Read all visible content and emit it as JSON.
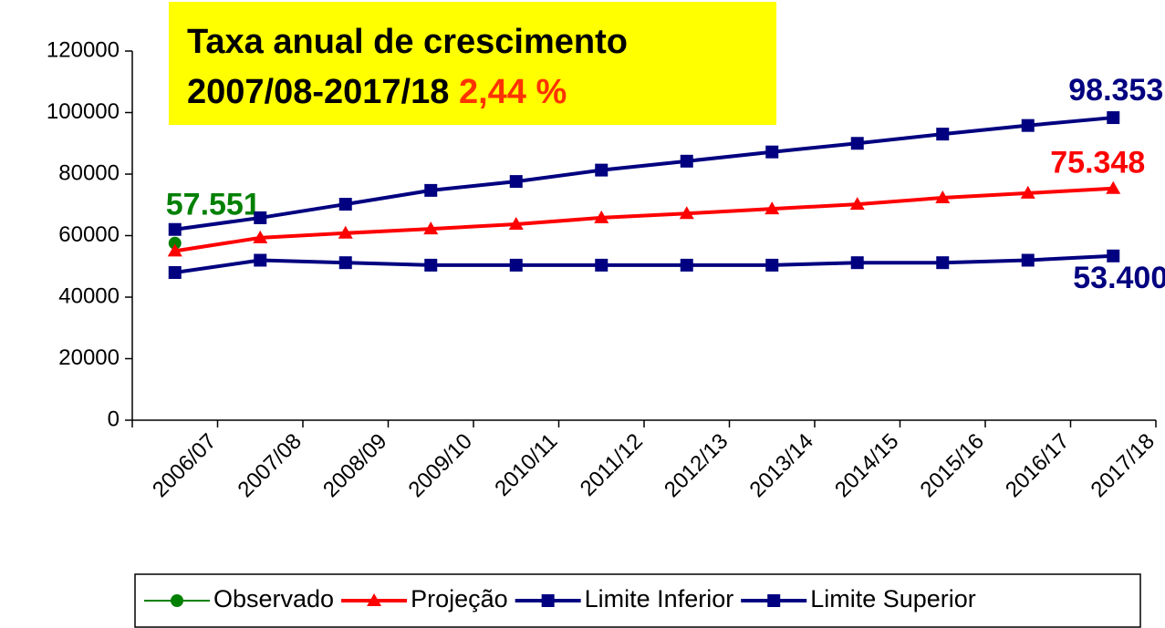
{
  "chart_data": {
    "type": "line",
    "title": "Taxa anual de crescimento",
    "subtitle": "2007/08-2017/18",
    "annotation": "2,44 %",
    "categories": [
      "2006/07",
      "2007/08",
      "2008/09",
      "2009/10",
      "2010/11",
      "2011/12",
      "2012/13",
      "2013/14",
      "2014/15",
      "2015/16",
      "2016/17",
      "2017/18"
    ],
    "series": [
      {
        "name": "Observado",
        "color": "#008000",
        "marker": "circle",
        "values": [
          57551,
          null,
          null,
          null,
          null,
          null,
          null,
          null,
          null,
          null,
          null,
          null
        ],
        "value_labels": [
          "57.551",
          null,
          null,
          null,
          null,
          null,
          null,
          null,
          null,
          null,
          null,
          null
        ]
      },
      {
        "name": "Projeção",
        "color": "#ff0000",
        "marker": "triangle",
        "values": [
          55000,
          59300,
          60800,
          62200,
          63700,
          65800,
          67200,
          68700,
          70200,
          72300,
          73800,
          75348
        ],
        "value_labels": [
          null,
          null,
          null,
          null,
          null,
          null,
          null,
          null,
          null,
          null,
          null,
          "75.348"
        ]
      },
      {
        "name": "Limite Inferior",
        "color": "#000080",
        "marker": "square",
        "values": [
          48000,
          52000,
          51200,
          50400,
          50400,
          50400,
          50400,
          50400,
          51200,
          51200,
          52000,
          53400
        ],
        "value_labels": [
          null,
          null,
          null,
          null,
          null,
          null,
          null,
          null,
          null,
          null,
          null,
          "53.400"
        ]
      },
      {
        "name": "Limite Superior",
        "color": "#000080",
        "marker": "square",
        "values": [
          62000,
          65800,
          70200,
          74700,
          77600,
          81300,
          84200,
          87200,
          90000,
          93000,
          95800,
          98353
        ],
        "value_labels": [
          null,
          null,
          null,
          null,
          null,
          null,
          null,
          null,
          null,
          null,
          null,
          "98.353"
        ]
      }
    ],
    "ylim": [
      0,
      120000
    ],
    "yticks": [
      0,
      20000,
      40000,
      60000,
      80000,
      100000,
      120000
    ],
    "grid": false,
    "legend": "bottom"
  }
}
